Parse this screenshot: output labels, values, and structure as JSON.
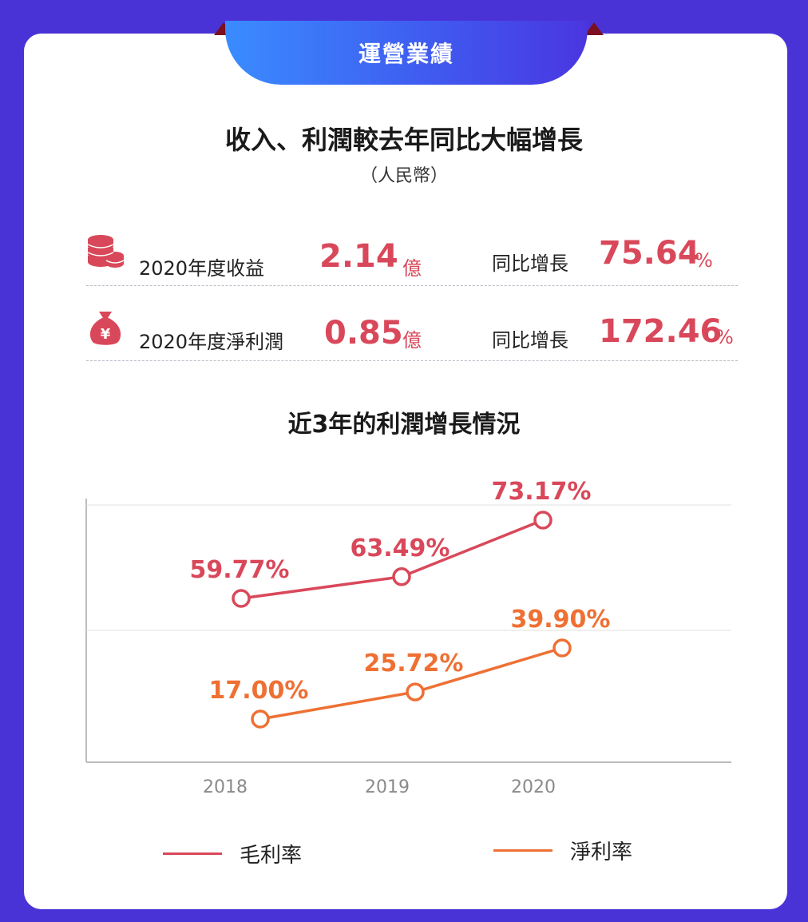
{
  "header": {
    "title": "運營業績"
  },
  "summary": {
    "title": "收入、利潤較去年同比大幅增長",
    "currency": "（人民幣）",
    "rows": [
      {
        "icon": "coins-icon",
        "label": "2020年度收益",
        "value": "2.14",
        "unit": "億",
        "yoy_label": "同比增長",
        "yoy_value": "75.64",
        "yoy_unit": "%"
      },
      {
        "icon": "money-bag-icon",
        "label": "2020年度淨利潤",
        "value": "0.85",
        "unit": "億",
        "yoy_label": "同比增長",
        "yoy_value": "172.46",
        "yoy_unit": "%"
      }
    ]
  },
  "chart_data": {
    "type": "line",
    "title": "近3年的利潤增長情況",
    "x": [
      "2018",
      "2019",
      "2020"
    ],
    "series": [
      {
        "name": "毛利率",
        "values": [
          59.77,
          63.49,
          73.17
        ],
        "labels": [
          "59.77%",
          "63.49%",
          "73.17%"
        ],
        "color": "#d9485a"
      },
      {
        "name": "淨利率",
        "values": [
          17.0,
          25.72,
          39.9
        ],
        "labels": [
          "17.00%",
          "25.72%",
          "39.90%"
        ],
        "color": "#ee7034"
      }
    ],
    "grid": true,
    "legend": "bottom"
  },
  "colors": {
    "background": "#4a33d6",
    "accent_red": "#d9485a",
    "accent_orange": "#ee7034",
    "ribbon": "#3f5cf0"
  }
}
